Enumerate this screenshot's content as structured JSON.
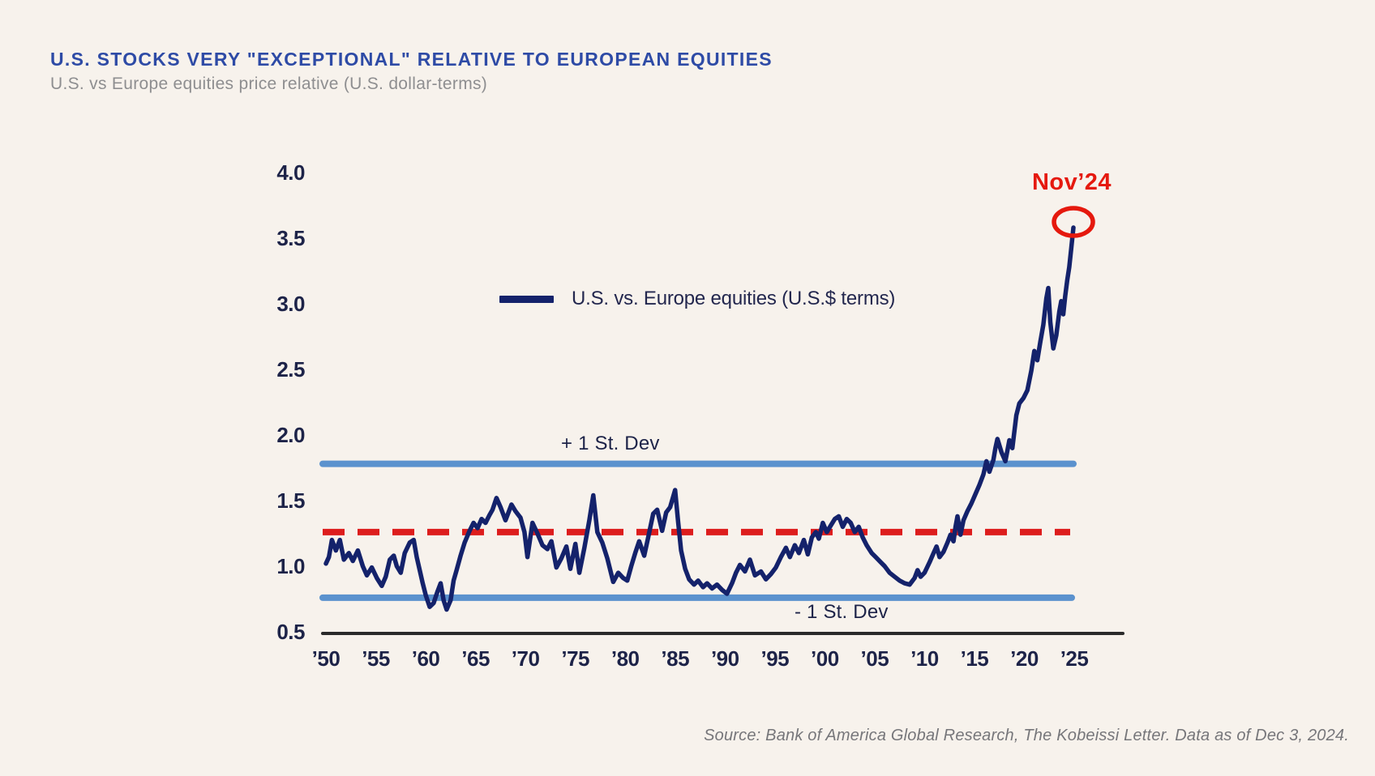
{
  "header": {
    "title": "U.S. STOCKS VERY \"EXCEPTIONAL\" RELATIVE TO EUROPEAN EQUITIES",
    "subtitle": "U.S. vs Europe equities price relative (U.S. dollar-terms)"
  },
  "source_note": "Source: Bank of America Global Research, The Kobeissi Letter. Data as of Dec 3, 2024.",
  "colors": {
    "background": "#f7f2ec",
    "title_blue": "#2e4ba6",
    "subtitle_gray": "#8e8e90",
    "series_navy": "#14226b",
    "std_band_blue": "#5b92ce",
    "mean_red": "#dd1d1d",
    "annotation_red": "#e5190e",
    "axis_text": "#1d2348",
    "axis_line": "#2b2b2b"
  },
  "chart_data": {
    "type": "line",
    "title": "U.S. STOCKS VERY \"EXCEPTIONAL\" RELATIVE TO EUROPEAN EQUITIES",
    "subtitle": "U.S. vs Europe equities price relative (U.S. dollar-terms)",
    "xlabel": "",
    "ylabel": "",
    "xlim": [
      1950,
      2025
    ],
    "ylim": [
      0.5,
      4.0
    ],
    "grid": false,
    "legend_position": "upper-center-left",
    "x_ticks": [
      {
        "year": 1950,
        "label": "’50"
      },
      {
        "year": 1955,
        "label": "’55"
      },
      {
        "year": 1960,
        "label": "’60"
      },
      {
        "year": 1965,
        "label": "’65"
      },
      {
        "year": 1970,
        "label": "’70"
      },
      {
        "year": 1975,
        "label": "’75"
      },
      {
        "year": 1980,
        "label": "’80"
      },
      {
        "year": 1985,
        "label": "’85"
      },
      {
        "year": 1990,
        "label": "’90"
      },
      {
        "year": 1995,
        "label": "’95"
      },
      {
        "year": 2000,
        "label": "’00"
      },
      {
        "year": 2005,
        "label": "’05"
      },
      {
        "year": 2010,
        "label": "’10"
      },
      {
        "year": 2015,
        "label": "’15"
      },
      {
        "year": 2020,
        "label": "’20"
      },
      {
        "year": 2025,
        "label": "’25"
      }
    ],
    "y_ticks": [
      {
        "value": 4.0,
        "label": "4.0"
      },
      {
        "value": 3.5,
        "label": "3.5"
      },
      {
        "value": 3.0,
        "label": "3.0"
      },
      {
        "value": 2.5,
        "label": "2.5"
      },
      {
        "value": 2.0,
        "label": "2.0"
      },
      {
        "value": 1.5,
        "label": "1.5"
      },
      {
        "value": 1.0,
        "label": "1.0"
      },
      {
        "value": 0.5,
        "label": "0.5"
      }
    ],
    "stat_lines": {
      "mean": {
        "value": 1.26,
        "style": "dashed",
        "color": "#dd1d1d"
      },
      "plus_std": {
        "value": 1.78,
        "style": "solid",
        "color": "#5b92ce",
        "label": "+ 1 St. Dev"
      },
      "minus_std": {
        "value": 0.76,
        "style": "solid",
        "color": "#5b92ce",
        "label": "- 1 St. Dev"
      }
    },
    "annotation": {
      "label": "Nov’24",
      "x": 2024.92,
      "y": 3.58
    },
    "series": [
      {
        "name": "U.S. vs. Europe equities (U.S.$ terms)",
        "color": "#14226b",
        "points": [
          [
            1950.0,
            1.02
          ],
          [
            1950.3,
            1.07
          ],
          [
            1950.6,
            1.2
          ],
          [
            1951.0,
            1.12
          ],
          [
            1951.4,
            1.2
          ],
          [
            1951.8,
            1.05
          ],
          [
            1952.3,
            1.1
          ],
          [
            1952.7,
            1.04
          ],
          [
            1953.2,
            1.12
          ],
          [
            1953.7,
            1.0
          ],
          [
            1954.1,
            0.93
          ],
          [
            1954.6,
            0.99
          ],
          [
            1955.1,
            0.91
          ],
          [
            1955.6,
            0.85
          ],
          [
            1956.0,
            0.92
          ],
          [
            1956.4,
            1.05
          ],
          [
            1956.8,
            1.08
          ],
          [
            1957.1,
            1.0
          ],
          [
            1957.5,
            0.95
          ],
          [
            1957.9,
            1.1
          ],
          [
            1958.4,
            1.18
          ],
          [
            1958.8,
            1.2
          ],
          [
            1959.1,
            1.07
          ],
          [
            1959.4,
            0.97
          ],
          [
            1959.7,
            0.87
          ],
          [
            1960.0,
            0.78
          ],
          [
            1960.4,
            0.69
          ],
          [
            1960.8,
            0.72
          ],
          [
            1961.2,
            0.81
          ],
          [
            1961.5,
            0.87
          ],
          [
            1961.8,
            0.74
          ],
          [
            1962.1,
            0.67
          ],
          [
            1962.5,
            0.74
          ],
          [
            1962.8,
            0.89
          ],
          [
            1963.1,
            0.97
          ],
          [
            1963.5,
            1.08
          ],
          [
            1963.9,
            1.18
          ],
          [
            1964.4,
            1.27
          ],
          [
            1964.8,
            1.33
          ],
          [
            1965.2,
            1.29
          ],
          [
            1965.6,
            1.36
          ],
          [
            1966.0,
            1.33
          ],
          [
            1966.4,
            1.39
          ],
          [
            1966.7,
            1.43
          ],
          [
            1967.1,
            1.52
          ],
          [
            1967.5,
            1.45
          ],
          [
            1968.0,
            1.35
          ],
          [
            1968.6,
            1.47
          ],
          [
            1969.0,
            1.42
          ],
          [
            1969.5,
            1.37
          ],
          [
            1969.9,
            1.26
          ],
          [
            1970.2,
            1.07
          ],
          [
            1970.7,
            1.33
          ],
          [
            1971.2,
            1.25
          ],
          [
            1971.7,
            1.16
          ],
          [
            1972.2,
            1.13
          ],
          [
            1972.6,
            1.19
          ],
          [
            1973.1,
            0.99
          ],
          [
            1973.6,
            1.06
          ],
          [
            1974.1,
            1.15
          ],
          [
            1974.5,
            0.98
          ],
          [
            1975.0,
            1.17
          ],
          [
            1975.4,
            0.95
          ],
          [
            1975.9,
            1.14
          ],
          [
            1976.4,
            1.35
          ],
          [
            1976.8,
            1.54
          ],
          [
            1977.2,
            1.26
          ],
          [
            1977.7,
            1.18
          ],
          [
            1978.2,
            1.06
          ],
          [
            1978.8,
            0.88
          ],
          [
            1979.3,
            0.95
          ],
          [
            1979.8,
            0.91
          ],
          [
            1980.2,
            0.89
          ],
          [
            1980.6,
            1.0
          ],
          [
            1981.0,
            1.1
          ],
          [
            1981.4,
            1.19
          ],
          [
            1981.9,
            1.08
          ],
          [
            1982.3,
            1.22
          ],
          [
            1982.8,
            1.4
          ],
          [
            1983.2,
            1.43
          ],
          [
            1983.7,
            1.27
          ],
          [
            1984.1,
            1.41
          ],
          [
            1984.5,
            1.45
          ],
          [
            1985.0,
            1.58
          ],
          [
            1985.3,
            1.34
          ],
          [
            1985.6,
            1.12
          ],
          [
            1986.0,
            0.98
          ],
          [
            1986.4,
            0.9
          ],
          [
            1986.9,
            0.86
          ],
          [
            1987.3,
            0.89
          ],
          [
            1987.8,
            0.84
          ],
          [
            1988.2,
            0.87
          ],
          [
            1988.7,
            0.83
          ],
          [
            1989.2,
            0.86
          ],
          [
            1989.7,
            0.82
          ],
          [
            1990.2,
            0.79
          ],
          [
            1990.7,
            0.87
          ],
          [
            1991.1,
            0.95
          ],
          [
            1991.5,
            1.01
          ],
          [
            1992.0,
            0.96
          ],
          [
            1992.5,
            1.05
          ],
          [
            1993.0,
            0.93
          ],
          [
            1993.6,
            0.96
          ],
          [
            1994.1,
            0.9
          ],
          [
            1994.6,
            0.94
          ],
          [
            1995.1,
            0.99
          ],
          [
            1995.6,
            1.07
          ],
          [
            1996.1,
            1.14
          ],
          [
            1996.5,
            1.07
          ],
          [
            1997.0,
            1.16
          ],
          [
            1997.4,
            1.1
          ],
          [
            1997.9,
            1.2
          ],
          [
            1998.3,
            1.09
          ],
          [
            1998.7,
            1.22
          ],
          [
            1999.1,
            1.26
          ],
          [
            1999.4,
            1.21
          ],
          [
            1999.8,
            1.33
          ],
          [
            2000.2,
            1.26
          ],
          [
            2000.6,
            1.31
          ],
          [
            2001.0,
            1.36
          ],
          [
            2001.4,
            1.38
          ],
          [
            2001.8,
            1.3
          ],
          [
            2002.2,
            1.36
          ],
          [
            2002.6,
            1.33
          ],
          [
            2003.0,
            1.26
          ],
          [
            2003.4,
            1.3
          ],
          [
            2003.8,
            1.22
          ],
          [
            2004.2,
            1.16
          ],
          [
            2004.7,
            1.1
          ],
          [
            2005.1,
            1.07
          ],
          [
            2005.6,
            1.03
          ],
          [
            2006.0,
            1.0
          ],
          [
            2006.5,
            0.95
          ],
          [
            2007.0,
            0.92
          ],
          [
            2007.5,
            0.89
          ],
          [
            2008.0,
            0.87
          ],
          [
            2008.5,
            0.86
          ],
          [
            2009.0,
            0.91
          ],
          [
            2009.3,
            0.97
          ],
          [
            2009.6,
            0.92
          ],
          [
            2010.0,
            0.95
          ],
          [
            2010.5,
            1.03
          ],
          [
            2010.9,
            1.1
          ],
          [
            2011.2,
            1.15
          ],
          [
            2011.5,
            1.07
          ],
          [
            2011.9,
            1.11
          ],
          [
            2012.3,
            1.18
          ],
          [
            2012.6,
            1.24
          ],
          [
            2012.9,
            1.19
          ],
          [
            2013.1,
            1.3
          ],
          [
            2013.3,
            1.38
          ],
          [
            2013.6,
            1.24
          ],
          [
            2013.9,
            1.35
          ],
          [
            2014.3,
            1.42
          ],
          [
            2014.7,
            1.48
          ],
          [
            2015.1,
            1.55
          ],
          [
            2015.5,
            1.62
          ],
          [
            2015.9,
            1.7
          ],
          [
            2016.2,
            1.8
          ],
          [
            2016.5,
            1.72
          ],
          [
            2016.9,
            1.81
          ],
          [
            2017.1,
            1.9
          ],
          [
            2017.3,
            1.97
          ],
          [
            2017.7,
            1.87
          ],
          [
            2018.1,
            1.8
          ],
          [
            2018.5,
            1.96
          ],
          [
            2018.8,
            1.9
          ],
          [
            2019.2,
            2.15
          ],
          [
            2019.5,
            2.24
          ],
          [
            2019.9,
            2.28
          ],
          [
            2020.3,
            2.34
          ],
          [
            2020.7,
            2.49
          ],
          [
            2021.0,
            2.64
          ],
          [
            2021.3,
            2.57
          ],
          [
            2021.6,
            2.71
          ],
          [
            2021.9,
            2.84
          ],
          [
            2022.2,
            3.04
          ],
          [
            2022.4,
            3.12
          ],
          [
            2022.6,
            2.86
          ],
          [
            2022.9,
            2.66
          ],
          [
            2023.2,
            2.76
          ],
          [
            2023.5,
            2.94
          ],
          [
            2023.7,
            3.02
          ],
          [
            2023.9,
            2.92
          ],
          [
            2024.1,
            3.06
          ],
          [
            2024.3,
            3.18
          ],
          [
            2024.5,
            3.28
          ],
          [
            2024.7,
            3.42
          ],
          [
            2024.92,
            3.58
          ]
        ]
      }
    ]
  }
}
